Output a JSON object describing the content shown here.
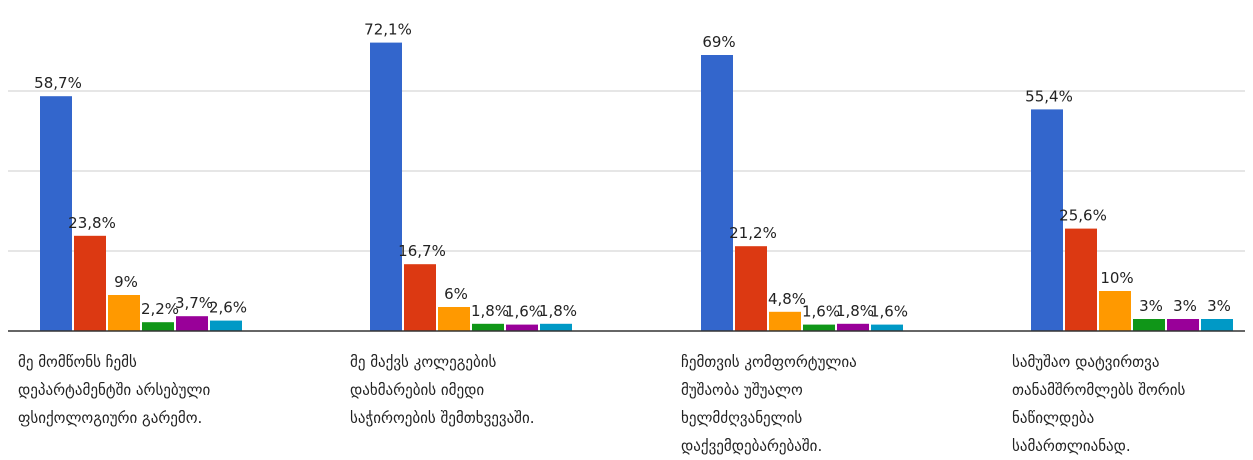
{
  "chart_data": {
    "type": "bar",
    "categories": [
      "მე მომწონს ჩემს დეპარტამენტში არსებული ფსიქოლოგიური გარემო.",
      "მე მაქვს კოლეგების დახმარების იმედი საჭიროების შემთხვევაში.",
      "ჩემთვის კომფორტულია მუშაობა უშუალო ხელმძღვანელის დაქვემდებარებაში.",
      "სამუშაო დატვირთვა თანამშრომლებს შორის ნაწილდება სამართლიანად."
    ],
    "category_lines": [
      [
        "მე მომწონს ჩემს",
        "დეპარტამენტში არსებული",
        "ფსიქოლოგიური გარემო."
      ],
      [
        "მე მაქვს კოლეგების",
        "დახმარების იმედი",
        "საჭიროების შემთხვევაში."
      ],
      [
        "ჩემთვის კომფორტულია",
        "მუშაობა უშუალო",
        "ხელმძღვანელის",
        "დაქვემდებარებაში."
      ],
      [
        "სამუშაო დატვირთვა",
        "თანამშრომლებს შორის",
        "ნაწილდება",
        "სამართლიანად."
      ]
    ],
    "series": [
      {
        "color": "#3366cc",
        "values": [
          58.7,
          72.1,
          69,
          55.4
        ],
        "labels": [
          "58,7%",
          "72,1%",
          "69%",
          "55,4%"
        ]
      },
      {
        "color": "#dc3912",
        "values": [
          23.8,
          16.7,
          21.2,
          25.6
        ],
        "labels": [
          "23,8%",
          "16,7%",
          "21,2%",
          "25,6%"
        ]
      },
      {
        "color": "#ff9900",
        "values": [
          9,
          6,
          4.8,
          10
        ],
        "labels": [
          "9%",
          "6%",
          "4,8%",
          "10%"
        ]
      },
      {
        "color": "#109618",
        "values": [
          2.2,
          1.8,
          1.6,
          3
        ],
        "labels": [
          "2,2%",
          "1,8%",
          "1,6%",
          "3%"
        ]
      },
      {
        "color": "#990099",
        "values": [
          3.7,
          1.6,
          1.8,
          3
        ],
        "labels": [
          "3,7%",
          "1,6%",
          "1,8%",
          "3%"
        ]
      },
      {
        "color": "#0099c6",
        "values": [
          2.6,
          1.8,
          1.6,
          3
        ],
        "labels": [
          "2,6%",
          "1,8%",
          "1,6%",
          "3%"
        ]
      }
    ],
    "ylim": [
      0,
      80
    ],
    "grid": true,
    "gridlines": [
      20,
      40,
      60
    ],
    "legend": "none"
  }
}
